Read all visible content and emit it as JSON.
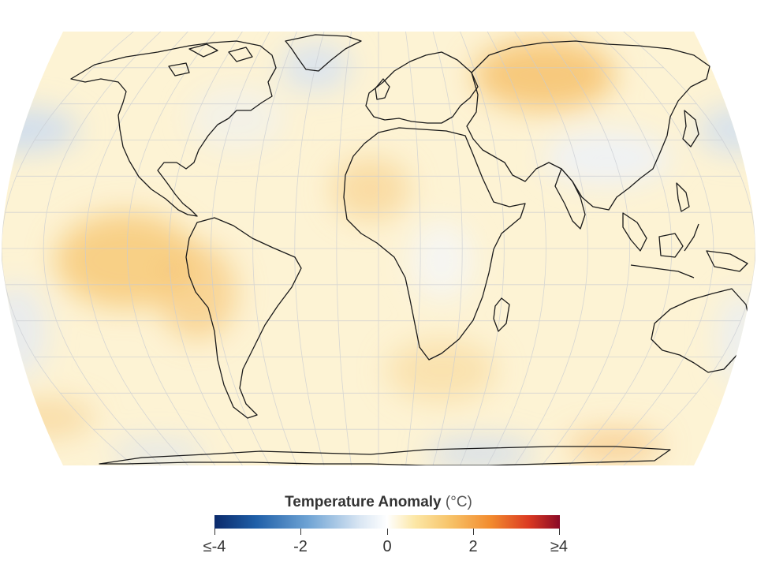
{
  "legend": {
    "title": "Temperature Anomaly",
    "unit": "(°C)",
    "ticks": [
      "≤-4",
      "-2",
      "0",
      "2",
      "≥4"
    ]
  },
  "colors": {
    "cold_extreme": "#0b2a6b",
    "cool": "#6ea3d4",
    "neutral": "#ffffff",
    "warm": "#f7c46a",
    "hot_extreme": "#8a0a26",
    "coastline": "#1a1a1a",
    "graticule": "#c9ccd2"
  }
}
